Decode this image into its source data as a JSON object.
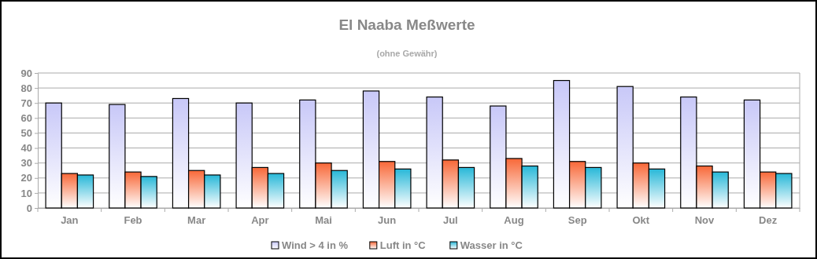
{
  "chart_data": {
    "type": "bar",
    "title": "El Naaba Meßwerte",
    "subtitle": "(ohne Gewähr)",
    "categories": [
      "Jan",
      "Feb",
      "Mar",
      "Apr",
      "Mai",
      "Jun",
      "Jul",
      "Aug",
      "Sep",
      "Okt",
      "Nov",
      "Dez"
    ],
    "series": [
      {
        "name": "Wind > 4 in %",
        "color": "#c8c8f8",
        "values": [
          70,
          69,
          73,
          70,
          72,
          78,
          74,
          68,
          85,
          81,
          74,
          72
        ]
      },
      {
        "name": "Luft in °C",
        "color": "#f86838",
        "values": [
          23,
          24,
          25,
          27,
          30,
          31,
          32,
          33,
          31,
          30,
          28,
          24
        ]
      },
      {
        "name": "Wasser in °C",
        "color": "#28b8d8",
        "values": [
          22,
          21,
          22,
          23,
          25,
          26,
          27,
          28,
          27,
          26,
          24,
          23
        ]
      }
    ],
    "ylim": [
      0,
      90
    ],
    "yticks": [
      0,
      10,
      20,
      30,
      40,
      50,
      60,
      70,
      80,
      90
    ],
    "grid": "y",
    "legend": "bottom"
  }
}
